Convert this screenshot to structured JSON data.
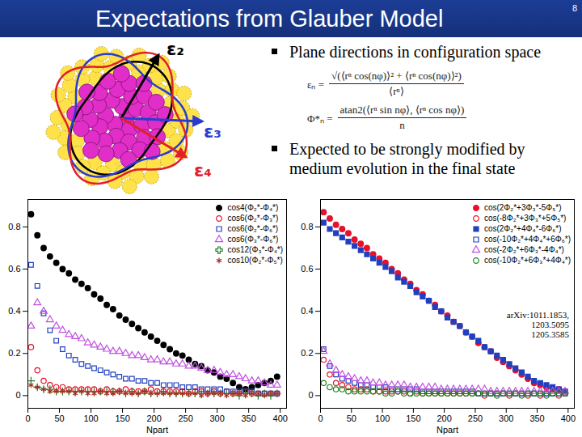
{
  "slide": {
    "title": "Expectations from Glauber Model",
    "page": "8",
    "diagram_labels": [
      "ε₂",
      "ε₃",
      "ε₄"
    ],
    "bullets": [
      "Plane directions in configuration space",
      "Expected to be strongly modified by medium evolution in the final state"
    ],
    "formulas": [
      {
        "lhs": "εₙ =",
        "numerator": "√(⟨rⁿ cos(nφ)⟩² + ⟨rⁿ cos(nφ)⟩²)",
        "denominator": "⟨rⁿ⟩"
      },
      {
        "lhs": "Φ*ₙ =",
        "numerator": "atan2(⟨rⁿ sin nφ⟩, ⟨rⁿ cos nφ⟩)",
        "denominator": "n"
      }
    ]
  },
  "chart_data": [
    {
      "type": "scatter",
      "x_label": "Npart",
      "legend": "top-right",
      "xlim": [
        0,
        410
      ],
      "xticks": [
        0,
        50,
        100,
        150,
        200,
        250,
        300,
        350,
        400
      ],
      "ylim": [
        -0.06,
        0.93
      ],
      "yticks": [
        0,
        0.2,
        0.4,
        0.6,
        0.8
      ],
      "x": [
        5,
        15,
        25,
        35,
        45,
        55,
        65,
        75,
        85,
        95,
        105,
        115,
        125,
        135,
        145,
        155,
        165,
        175,
        185,
        195,
        205,
        215,
        225,
        235,
        245,
        255,
        265,
        275,
        285,
        295,
        305,
        315,
        325,
        335,
        345,
        355,
        365,
        375,
        385,
        395
      ],
      "series": [
        {
          "name": "cos4(Φ₂*-Φ₄*)",
          "color": "#000000",
          "marker": "circle",
          "values": [
            0.86,
            0.76,
            0.7,
            0.66,
            0.63,
            0.6,
            0.58,
            0.55,
            0.53,
            0.51,
            0.48,
            0.46,
            0.43,
            0.41,
            0.38,
            0.36,
            0.34,
            0.32,
            0.3,
            0.28,
            0.26,
            0.24,
            0.22,
            0.2,
            0.19,
            0.17,
            0.15,
            0.14,
            0.12,
            0.11,
            0.09,
            0.08,
            0.06,
            0.04,
            0.03,
            0.04,
            0.05,
            0.06,
            0.07,
            0.09
          ]
        },
        {
          "name": "cos6(Φ₂*-Φ₃*)",
          "color": "#e8102a",
          "marker": "open_circle",
          "values": [
            0.23,
            0.12,
            0.07,
            0.05,
            0.04,
            0.04,
            0.03,
            0.03,
            0.03,
            0.03,
            0.03,
            0.02,
            0.03,
            0.02,
            0.02,
            0.03,
            0.02,
            0.02,
            0.02,
            0.03,
            0.02,
            0.02,
            0.02,
            0.02,
            0.02,
            0.01,
            0.02,
            0.02,
            0.01,
            0.02,
            0.01,
            0.02,
            0.01,
            0.01,
            0.02,
            0.01,
            0.01,
            0.01,
            0.01,
            0.01
          ]
        },
        {
          "name": "cos6(Φ₂*-Φ₆*)",
          "color": "#2040c0",
          "marker": "open_square",
          "values": [
            0.62,
            0.52,
            0.39,
            0.31,
            0.26,
            0.22,
            0.19,
            0.17,
            0.15,
            0.14,
            0.13,
            0.12,
            0.11,
            0.1,
            0.09,
            0.08,
            0.08,
            0.07,
            0.07,
            0.06,
            0.06,
            0.05,
            0.05,
            0.05,
            0.04,
            0.04,
            0.04,
            0.03,
            0.03,
            0.03,
            0.03,
            0.02,
            0.02,
            0.02,
            0.02,
            0.02,
            0.01,
            0.01,
            0.01,
            0.01
          ]
        },
        {
          "name": "cos6(Φ₃*-Φ₆*)",
          "color": "#c050e0",
          "marker": "open_triangle",
          "values": [
            0.33,
            0.44,
            0.4,
            0.36,
            0.33,
            0.31,
            0.29,
            0.28,
            0.27,
            0.25,
            0.24,
            0.23,
            0.22,
            0.21,
            0.21,
            0.2,
            0.19,
            0.19,
            0.18,
            0.17,
            0.17,
            0.16,
            0.16,
            0.15,
            0.15,
            0.14,
            0.14,
            0.13,
            0.12,
            0.12,
            0.11,
            0.1,
            0.1,
            0.09,
            0.08,
            0.07,
            0.07,
            0.06,
            0.05,
            0.05
          ]
        },
        {
          "name": "cos12(Φ₃*-Φ₄*)",
          "color": "#208020",
          "marker": "plus",
          "values": [
            0.07,
            0.04,
            0.03,
            0.03,
            0.02,
            0.02,
            0.02,
            0.02,
            0.02,
            0.02,
            0.02,
            0.02,
            0.02,
            0.02,
            0.02,
            0.01,
            0.02,
            0.01,
            0.02,
            0.01,
            0.01,
            0.02,
            0.01,
            0.01,
            0.01,
            0.01,
            0.01,
            0.01,
            0.01,
            0.01,
            0.01,
            0.01,
            0.01,
            0,
            0.01,
            0.01,
            0,
            0.01,
            0,
            0.01
          ]
        },
        {
          "name": "cos10(Φ₂*-Φ₅*)",
          "color": "#a03020",
          "marker": "asterisk",
          "values": [
            0.05,
            0.04,
            0.03,
            0.02,
            0.02,
            0.02,
            0.02,
            0.01,
            0.02,
            0.01,
            0.01,
            0.02,
            0.01,
            0.01,
            0.02,
            0.01,
            0.01,
            0.01,
            0.02,
            0.01,
            0.01,
            0.01,
            0.01,
            0.01,
            0.01,
            0.01,
            0.01,
            0,
            0.01,
            0.01,
            0.01,
            0,
            0.01,
            0.01,
            0,
            0.01,
            0.01,
            0,
            0.01,
            0.01
          ]
        }
      ]
    },
    {
      "type": "scatter",
      "x_label": "Npart",
      "legend": "top-right",
      "annotation": [
        "arXiv:1011.1853,",
        "1203.5095",
        "1205.3585"
      ],
      "xlim": [
        0,
        410
      ],
      "xticks": [
        0,
        50,
        100,
        150,
        200,
        250,
        300,
        350,
        400
      ],
      "ylim": [
        -0.06,
        0.93
      ],
      "yticks": [
        0,
        0.2,
        0.4,
        0.6,
        0.8
      ],
      "x": [
        5,
        15,
        25,
        35,
        45,
        55,
        65,
        75,
        85,
        95,
        105,
        115,
        125,
        135,
        145,
        155,
        165,
        175,
        185,
        195,
        205,
        215,
        225,
        235,
        245,
        255,
        265,
        275,
        285,
        295,
        305,
        315,
        325,
        335,
        345,
        355,
        365,
        375,
        385,
        395
      ],
      "series": [
        {
          "name": "cos(2Φ₂*+3Φ₃*-5Φ₅*)",
          "color": "#e8102a",
          "marker": "circle",
          "values": [
            0.87,
            0.84,
            0.81,
            0.79,
            0.77,
            0.74,
            0.72,
            0.7,
            0.67,
            0.65,
            0.63,
            0.6,
            0.58,
            0.55,
            0.53,
            0.5,
            0.48,
            0.45,
            0.43,
            0.4,
            0.38,
            0.35,
            0.33,
            0.3,
            0.28,
            0.25,
            0.23,
            0.21,
            0.18,
            0.16,
            0.14,
            0.12,
            0.1,
            0.08,
            0.06,
            0.05,
            0.04,
            0.03,
            0.03,
            0.02
          ]
        },
        {
          "name": "cos(-8Φ₂*+3Φ₃*+5Φ₅*)",
          "color": "#e8102a",
          "marker": "open_circle",
          "values": [
            0.17,
            0.1,
            0.06,
            0.05,
            0.04,
            0.03,
            0.03,
            0.03,
            0.02,
            0.02,
            0.02,
            0.02,
            0.02,
            0.02,
            0.01,
            0.02,
            0.01,
            0.01,
            0.01,
            0.01,
            0.01,
            0.01,
            0.01,
            0.01,
            0.01,
            0.01,
            0,
            0.01,
            0.01,
            0.01,
            0,
            0.01,
            0.01,
            0,
            0.01,
            0,
            0.01,
            0.01,
            0,
            0.01
          ]
        },
        {
          "name": "cos(2Φ₂*+4Φ₄*-6Φ₆*)",
          "color": "#2040c0",
          "marker": "square",
          "values": [
            0.82,
            0.79,
            0.77,
            0.75,
            0.73,
            0.71,
            0.69,
            0.67,
            0.65,
            0.63,
            0.61,
            0.59,
            0.56,
            0.54,
            0.52,
            0.49,
            0.47,
            0.45,
            0.42,
            0.4,
            0.37,
            0.35,
            0.33,
            0.3,
            0.28,
            0.26,
            0.23,
            0.21,
            0.19,
            0.17,
            0.15,
            0.13,
            0.11,
            0.09,
            0.07,
            0.06,
            0.05,
            0.04,
            0.03,
            0.02
          ]
        },
        {
          "name": "cos(-10Φ₂*+4Φ₄*+6Φ₆*)",
          "color": "#2040c0",
          "marker": "open_square",
          "values": [
            0.22,
            0.14,
            0.1,
            0.08,
            0.07,
            0.06,
            0.05,
            0.05,
            0.04,
            0.04,
            0.04,
            0.03,
            0.03,
            0.03,
            0.03,
            0.03,
            0.02,
            0.02,
            0.02,
            0.02,
            0.02,
            0.02,
            0.02,
            0.02,
            0.02,
            0.01,
            0.01,
            0.01,
            0.01,
            0.01,
            0.01,
            0.01,
            0.01,
            0.01,
            0.01,
            0.01,
            0.01,
            0.01,
            0.01,
            0.01
          ]
        },
        {
          "name": "cos(-2Φ₂*+6Φ₃*-4Φ₄*)",
          "color": "#c050e0",
          "marker": "open_triangle",
          "values": [
            0.21,
            0.15,
            0.12,
            0.1,
            0.09,
            0.08,
            0.07,
            0.07,
            0.06,
            0.06,
            0.05,
            0.05,
            0.05,
            0.05,
            0.04,
            0.04,
            0.04,
            0.04,
            0.04,
            0.03,
            0.03,
            0.03,
            0.03,
            0.03,
            0.03,
            0.03,
            0.03,
            0.02,
            0.02,
            0.02,
            0.02,
            0.02,
            0.02,
            0.02,
            0.02,
            0.02,
            0.02,
            0.02,
            0.02,
            0.02
          ]
        },
        {
          "name": "cos(-10Φ₂*+6Φ₃*+4Φ₄*)",
          "color": "#208020",
          "marker": "open_circle",
          "values": [
            0.06,
            0.04,
            0.03,
            0.03,
            0.02,
            0.02,
            0.02,
            0.02,
            0.02,
            0.02,
            0.01,
            0.01,
            0.02,
            0.01,
            0.01,
            0.01,
            0.01,
            0.01,
            0.01,
            0.01,
            0.01,
            0.01,
            0.01,
            0.01,
            0.01,
            0.01,
            0.01,
            0.01,
            0,
            0.01,
            0.01,
            0.01,
            0,
            0.01,
            0.01,
            0.01,
            0,
            0.01,
            0.01,
            0.01
          ]
        }
      ]
    }
  ]
}
